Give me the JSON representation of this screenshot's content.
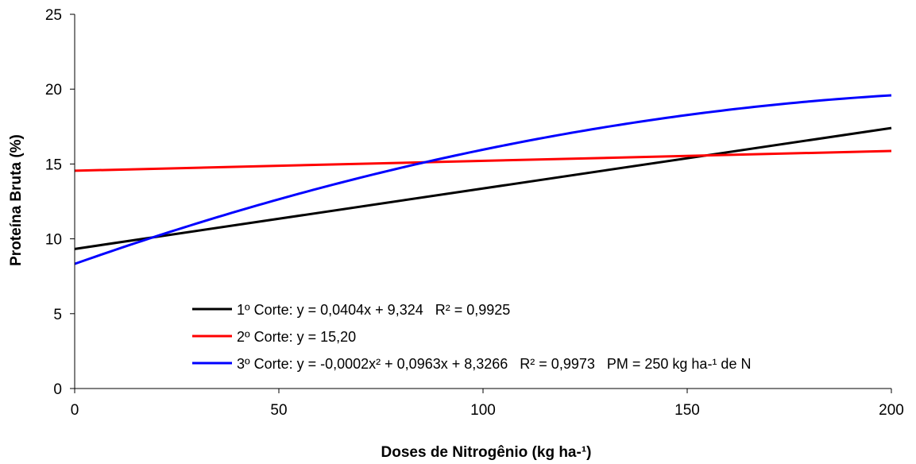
{
  "chart_data": {
    "type": "line",
    "xlabel": "Doses de Nitrogênio (kg ha-¹)",
    "ylabel": "Proteína Bruta (%)",
    "xlim": [
      0,
      200
    ],
    "ylim": [
      0,
      25
    ],
    "x_ticks": [
      0,
      50,
      100,
      150,
      200
    ],
    "y_ticks": [
      0,
      5,
      10,
      15,
      20,
      25
    ],
    "x_tick_labels": [
      "0",
      "50",
      "100",
      "150",
      "200"
    ],
    "y_tick_labels": [
      "0",
      "5",
      "10",
      "15",
      "20",
      "25"
    ],
    "grid": false,
    "legend_position": "lower-left inside plot",
    "series": [
      {
        "name": "1º Corte: y = 0,0404x + 9,324   R² = 0,9925",
        "color": "#000000",
        "model": "linear",
        "coefficients": [
          9.324,
          0.0404
        ],
        "x": [
          0,
          50,
          100,
          150,
          200
        ],
        "y": [
          9.32,
          11.34,
          13.36,
          15.38,
          17.4
        ]
      },
      {
        "name": "2º Corte: y = 15,20",
        "color": "#ff0000",
        "model": "linear",
        "coefficients": [
          14.55,
          0.0066
        ],
        "x": [
          0,
          50,
          100,
          150,
          200
        ],
        "y": [
          14.55,
          14.88,
          15.21,
          15.54,
          15.87
        ]
      },
      {
        "name": "3º Corte: y = -0,0002x² + 0,0963x + 8,3266   R² = 0,9973   PM = 250 kg ha-¹ de N",
        "color": "#0000ff",
        "model": "quadratic",
        "coefficients": [
          8.3266,
          0.0963,
          -0.0002
        ],
        "x": [
          0,
          25,
          50,
          75,
          100,
          125,
          150,
          175,
          200
        ],
        "y": [
          8.33,
          10.61,
          12.64,
          14.42,
          15.96,
          17.24,
          18.28,
          19.07,
          19.59
        ]
      }
    ]
  }
}
